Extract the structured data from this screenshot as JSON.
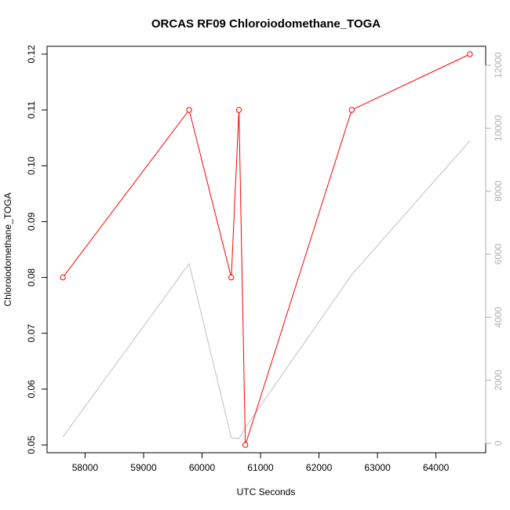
{
  "chart_data": {
    "type": "line",
    "title": "ORCAS RF09 Chloroiodomethane_TOGA",
    "xlabel": "UTC Seconds",
    "ylabel": "Chloroiodomethane_TOGA",
    "xlim": [
      57350,
      64850
    ],
    "ylim": [
      0.0486,
      0.1214
    ],
    "y2lim": [
      -300,
      12600
    ],
    "x_ticks": [
      58000,
      59000,
      60000,
      61000,
      62000,
      63000,
      64000
    ],
    "y_ticks": [
      0.05,
      0.06,
      0.07,
      0.08,
      0.09,
      0.1,
      0.11,
      0.12
    ],
    "y2_ticks": [
      0,
      2000,
      4000,
      6000,
      8000,
      10000,
      12000
    ],
    "grid": false,
    "series": [
      {
        "color": "#ff0000",
        "axis": "left",
        "markers": "open-circle",
        "points": [
          {
            "x": 57620,
            "y": 0.08
          },
          {
            "x": 59780,
            "y": 0.11
          },
          {
            "x": 60500,
            "y": 0.08
          },
          {
            "x": 60630,
            "y": 0.11
          },
          {
            "x": 60740,
            "y": 0.05
          },
          {
            "x": 62560,
            "y": 0.11
          },
          {
            "x": 64580,
            "y": 0.12
          }
        ]
      },
      {
        "color": "#c0c0c0",
        "axis": "right",
        "markers": "none",
        "points": [
          {
            "x": 57620,
            "y": 200
          },
          {
            "x": 59780,
            "y": 5700
          },
          {
            "x": 60500,
            "y": 180
          },
          {
            "x": 60630,
            "y": 140
          },
          {
            "x": 60740,
            "y": 500
          },
          {
            "x": 62560,
            "y": 5350
          },
          {
            "x": 64580,
            "y": 9600
          }
        ]
      }
    ],
    "colors": {
      "plot_border": "#000000",
      "left_axis": "#000000",
      "right_axis": "#b0b0b0"
    }
  }
}
